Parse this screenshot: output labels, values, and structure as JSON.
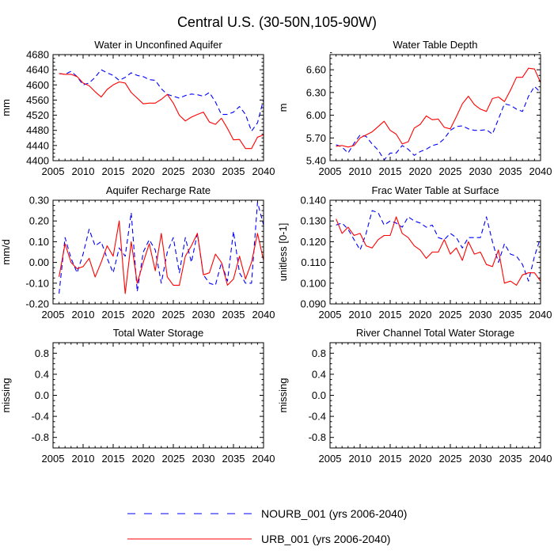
{
  "figure": {
    "title": "Central U.S. (30-50N,105-90W)"
  },
  "colors": {
    "nourb": "#0000ff",
    "urb": "#ff0000",
    "axes": "#000000"
  },
  "legend": {
    "items": [
      {
        "label": "NOURB_001 (yrs 2006-2040)",
        "color": "#0000ff",
        "style": "dashed"
      },
      {
        "label": "URB_001 (yrs 2006-2040)",
        "color": "#ff0000",
        "style": "solid"
      }
    ]
  },
  "chart_data": [
    {
      "type": "line",
      "title": "Water in Unconfined Aquifer",
      "xlabel": "",
      "ylabel": "mm",
      "xlim": [
        2005,
        2040
      ],
      "ylim": [
        4400,
        4680
      ],
      "xticks": [
        2005,
        2010,
        2015,
        2020,
        2025,
        2030,
        2035,
        2040
      ],
      "yticks": [
        4400,
        4440,
        4480,
        4520,
        4560,
        4600,
        4640,
        4680
      ],
      "ytick_labels": [
        "4400",
        "4440",
        "4480",
        "4520",
        "4560",
        "4600",
        "4640",
        "4680"
      ],
      "x": [
        2006,
        2007,
        2008,
        2009,
        2010,
        2011,
        2012,
        2013,
        2014,
        2015,
        2016,
        2017,
        2018,
        2019,
        2020,
        2021,
        2022,
        2023,
        2024,
        2025,
        2026,
        2027,
        2028,
        2029,
        2030,
        2031,
        2032,
        2033,
        2034,
        2035,
        2036,
        2037,
        2038,
        2039,
        2040
      ],
      "series": [
        {
          "name": "NOURB_001 (yrs 2006-2040)",
          "style": "dashed",
          "values": [
            4630,
            4628,
            4636,
            4622,
            4600,
            4605,
            4620,
            4640,
            4632,
            4625,
            4612,
            4620,
            4632,
            4625,
            4622,
            4614,
            4612,
            4590,
            4575,
            4570,
            4565,
            4572,
            4576,
            4574,
            4570,
            4580,
            4555,
            4522,
            4522,
            4528,
            4543,
            4522,
            4478,
            4500,
            4562
          ]
        },
        {
          "name": "URB_001 (yrs 2006-2040)",
          "style": "solid",
          "values": [
            4630,
            4628,
            4628,
            4622,
            4605,
            4598,
            4582,
            4568,
            4588,
            4600,
            4608,
            4605,
            4580,
            4565,
            4550,
            4552,
            4552,
            4562,
            4575,
            4552,
            4520,
            4505,
            4515,
            4522,
            4528,
            4502,
            4496,
            4512,
            4485,
            4455,
            4456,
            4432,
            4432,
            4462,
            4468
          ]
        }
      ]
    },
    {
      "type": "line",
      "title": "Water Table Depth",
      "xlabel": "",
      "ylabel": "m",
      "xlim": [
        2005,
        2040
      ],
      "ylim": [
        5.4,
        6.8
      ],
      "xticks": [
        2005,
        2010,
        2015,
        2020,
        2025,
        2030,
        2035,
        2040
      ],
      "yticks": [
        5.4,
        5.7,
        6.0,
        6.3,
        6.6
      ],
      "ytick_labels": [
        "5.40",
        "5.70",
        "6.00",
        "6.30",
        "6.60"
      ],
      "x": [
        2006,
        2007,
        2008,
        2009,
        2010,
        2011,
        2012,
        2013,
        2014,
        2015,
        2016,
        2017,
        2018,
        2019,
        2020,
        2021,
        2022,
        2023,
        2024,
        2025,
        2026,
        2027,
        2028,
        2029,
        2030,
        2031,
        2032,
        2033,
        2034,
        2035,
        2036,
        2037,
        2038,
        2039,
        2040
      ],
      "series": [
        {
          "name": "NOURB_001 (yrs 2006-2040)",
          "style": "dashed",
          "values": [
            5.61,
            5.58,
            5.5,
            5.63,
            5.74,
            5.72,
            5.62,
            5.54,
            5.41,
            5.5,
            5.5,
            5.6,
            5.55,
            5.47,
            5.52,
            5.55,
            5.6,
            5.62,
            5.69,
            5.8,
            5.85,
            5.86,
            5.82,
            5.8,
            5.8,
            5.81,
            5.75,
            5.95,
            6.15,
            6.13,
            6.08,
            6.05,
            6.25,
            6.38,
            6.3
          ]
        },
        {
          "name": "URB_001 (yrs 2006-2040)",
          "style": "solid",
          "values": [
            5.59,
            5.6,
            5.58,
            5.6,
            5.7,
            5.74,
            5.78,
            5.85,
            5.92,
            5.8,
            5.75,
            5.62,
            5.65,
            5.83,
            5.88,
            5.99,
            5.94,
            5.95,
            5.84,
            5.82,
            5.98,
            6.15,
            6.25,
            6.14,
            6.08,
            6.05,
            6.22,
            6.24,
            6.18,
            6.33,
            6.5,
            6.5,
            6.62,
            6.61,
            6.43
          ]
        }
      ]
    },
    {
      "type": "line",
      "title": "Aquifer Recharge Rate",
      "xlabel": "",
      "ylabel": "mm/d",
      "xlim": [
        2005,
        2040
      ],
      "ylim": [
        -0.2,
        0.3
      ],
      "xticks": [
        2005,
        2010,
        2015,
        2020,
        2025,
        2030,
        2035,
        2040
      ],
      "yticks": [
        -0.2,
        -0.1,
        0.0,
        0.1,
        0.2,
        0.3
      ],
      "ytick_labels": [
        "-0.20",
        "-0.10",
        "0.00",
        "0.10",
        "0.20",
        "0.30"
      ],
      "x": [
        2006,
        2007,
        2008,
        2009,
        2010,
        2011,
        2012,
        2013,
        2014,
        2015,
        2016,
        2017,
        2018,
        2019,
        2020,
        2021,
        2022,
        2023,
        2024,
        2025,
        2026,
        2027,
        2028,
        2029,
        2030,
        2031,
        2032,
        2033,
        2034,
        2035,
        2036,
        2037,
        2038,
        2039,
        2040
      ],
      "series": [
        {
          "name": "NOURB_001 (yrs 2006-2040)",
          "style": "dashed",
          "values": [
            -0.15,
            0.12,
            0.02,
            -0.05,
            0.04,
            0.16,
            0.08,
            0.1,
            0.02,
            -0.05,
            0.07,
            0.03,
            0.24,
            -0.14,
            0.05,
            0.11,
            0.06,
            -0.1,
            0.05,
            0.12,
            -0.05,
            0.12,
            0.0,
            0.14,
            -0.06,
            -0.1,
            -0.11,
            0.0,
            -0.09,
            0.15,
            -0.05,
            -0.1,
            -0.1,
            0.29,
            0.18
          ]
        },
        {
          "name": "URB_001 (yrs 2006-2040)",
          "style": "solid",
          "values": [
            -0.07,
            0.09,
            0.0,
            -0.03,
            -0.02,
            0.02,
            -0.07,
            0.0,
            0.08,
            0.03,
            0.2,
            -0.15,
            0.1,
            -0.1,
            0.0,
            0.09,
            -0.04,
            0.14,
            -0.07,
            -0.11,
            -0.11,
            0.03,
            0.08,
            0.14,
            -0.06,
            -0.05,
            0.04,
            0.0,
            -0.11,
            -0.08,
            0.03,
            -0.08,
            0.0,
            0.14,
            0.01
          ]
        }
      ]
    },
    {
      "type": "line",
      "title": "Frac Water Table at Surface",
      "xlabel": "",
      "ylabel": "unitless [0-1]",
      "xlim": [
        2005,
        2040
      ],
      "ylim": [
        0.09,
        0.14
      ],
      "xticks": [
        2005,
        2010,
        2015,
        2020,
        2025,
        2030,
        2035,
        2040
      ],
      "yticks": [
        0.09,
        0.1,
        0.11,
        0.12,
        0.13,
        0.14
      ],
      "ytick_labels": [
        "0.090",
        "0.100",
        "0.110",
        "0.120",
        "0.130",
        "0.140"
      ],
      "x": [
        2006,
        2007,
        2008,
        2009,
        2010,
        2011,
        2012,
        2013,
        2014,
        2015,
        2016,
        2017,
        2018,
        2019,
        2020,
        2021,
        2022,
        2023,
        2024,
        2025,
        2026,
        2027,
        2028,
        2029,
        2030,
        2031,
        2032,
        2033,
        2034,
        2035,
        2036,
        2037,
        2038,
        2039,
        2040
      ],
      "series": [
        {
          "name": "NOURB_001 (yrs 2006-2040)",
          "style": "dashed",
          "values": [
            0.128,
            0.129,
            0.126,
            0.121,
            0.116,
            0.124,
            0.135,
            0.134,
            0.128,
            0.13,
            0.129,
            0.127,
            0.132,
            0.13,
            0.129,
            0.127,
            0.128,
            0.122,
            0.121,
            0.124,
            0.122,
            0.117,
            0.122,
            0.122,
            0.122,
            0.132,
            0.12,
            0.11,
            0.119,
            0.114,
            0.113,
            0.109,
            0.101,
            0.113,
            0.122
          ]
        },
        {
          "name": "URB_001 (yrs 2006-2040)",
          "style": "solid",
          "values": [
            0.131,
            0.124,
            0.127,
            0.123,
            0.124,
            0.118,
            0.117,
            0.121,
            0.123,
            0.123,
            0.132,
            0.124,
            0.122,
            0.118,
            0.116,
            0.112,
            0.115,
            0.115,
            0.121,
            0.114,
            0.117,
            0.111,
            0.12,
            0.114,
            0.115,
            0.109,
            0.108,
            0.116,
            0.1,
            0.101,
            0.099,
            0.104,
            0.105,
            0.105,
            0.101
          ]
        }
      ]
    },
    {
      "type": "line",
      "title": "Total Water Storage",
      "xlabel": "",
      "ylabel": "missing",
      "xlim": [
        2005,
        2040
      ],
      "ylim": [
        -1,
        1
      ],
      "xticks": [
        2005,
        2010,
        2015,
        2020,
        2025,
        2030,
        2035,
        2040
      ],
      "yticks": [
        -0.8,
        -0.4,
        0.0,
        0.4,
        0.8
      ],
      "ytick_labels": [
        "-0.8",
        "-0.4",
        "0.0",
        "0.4",
        "0.8"
      ],
      "x": [],
      "series": []
    },
    {
      "type": "line",
      "title": "River Channel Total Water Storage",
      "xlabel": "",
      "ylabel": "missing",
      "xlim": [
        2005,
        2040
      ],
      "ylim": [
        -1,
        1
      ],
      "xticks": [
        2005,
        2010,
        2015,
        2020,
        2025,
        2030,
        2035,
        2040
      ],
      "yticks": [
        -0.8,
        -0.4,
        0.0,
        0.4,
        0.8
      ],
      "ytick_labels": [
        "-0.8",
        "-0.4",
        "0.0",
        "0.4",
        "0.8"
      ],
      "x": [],
      "series": []
    }
  ]
}
